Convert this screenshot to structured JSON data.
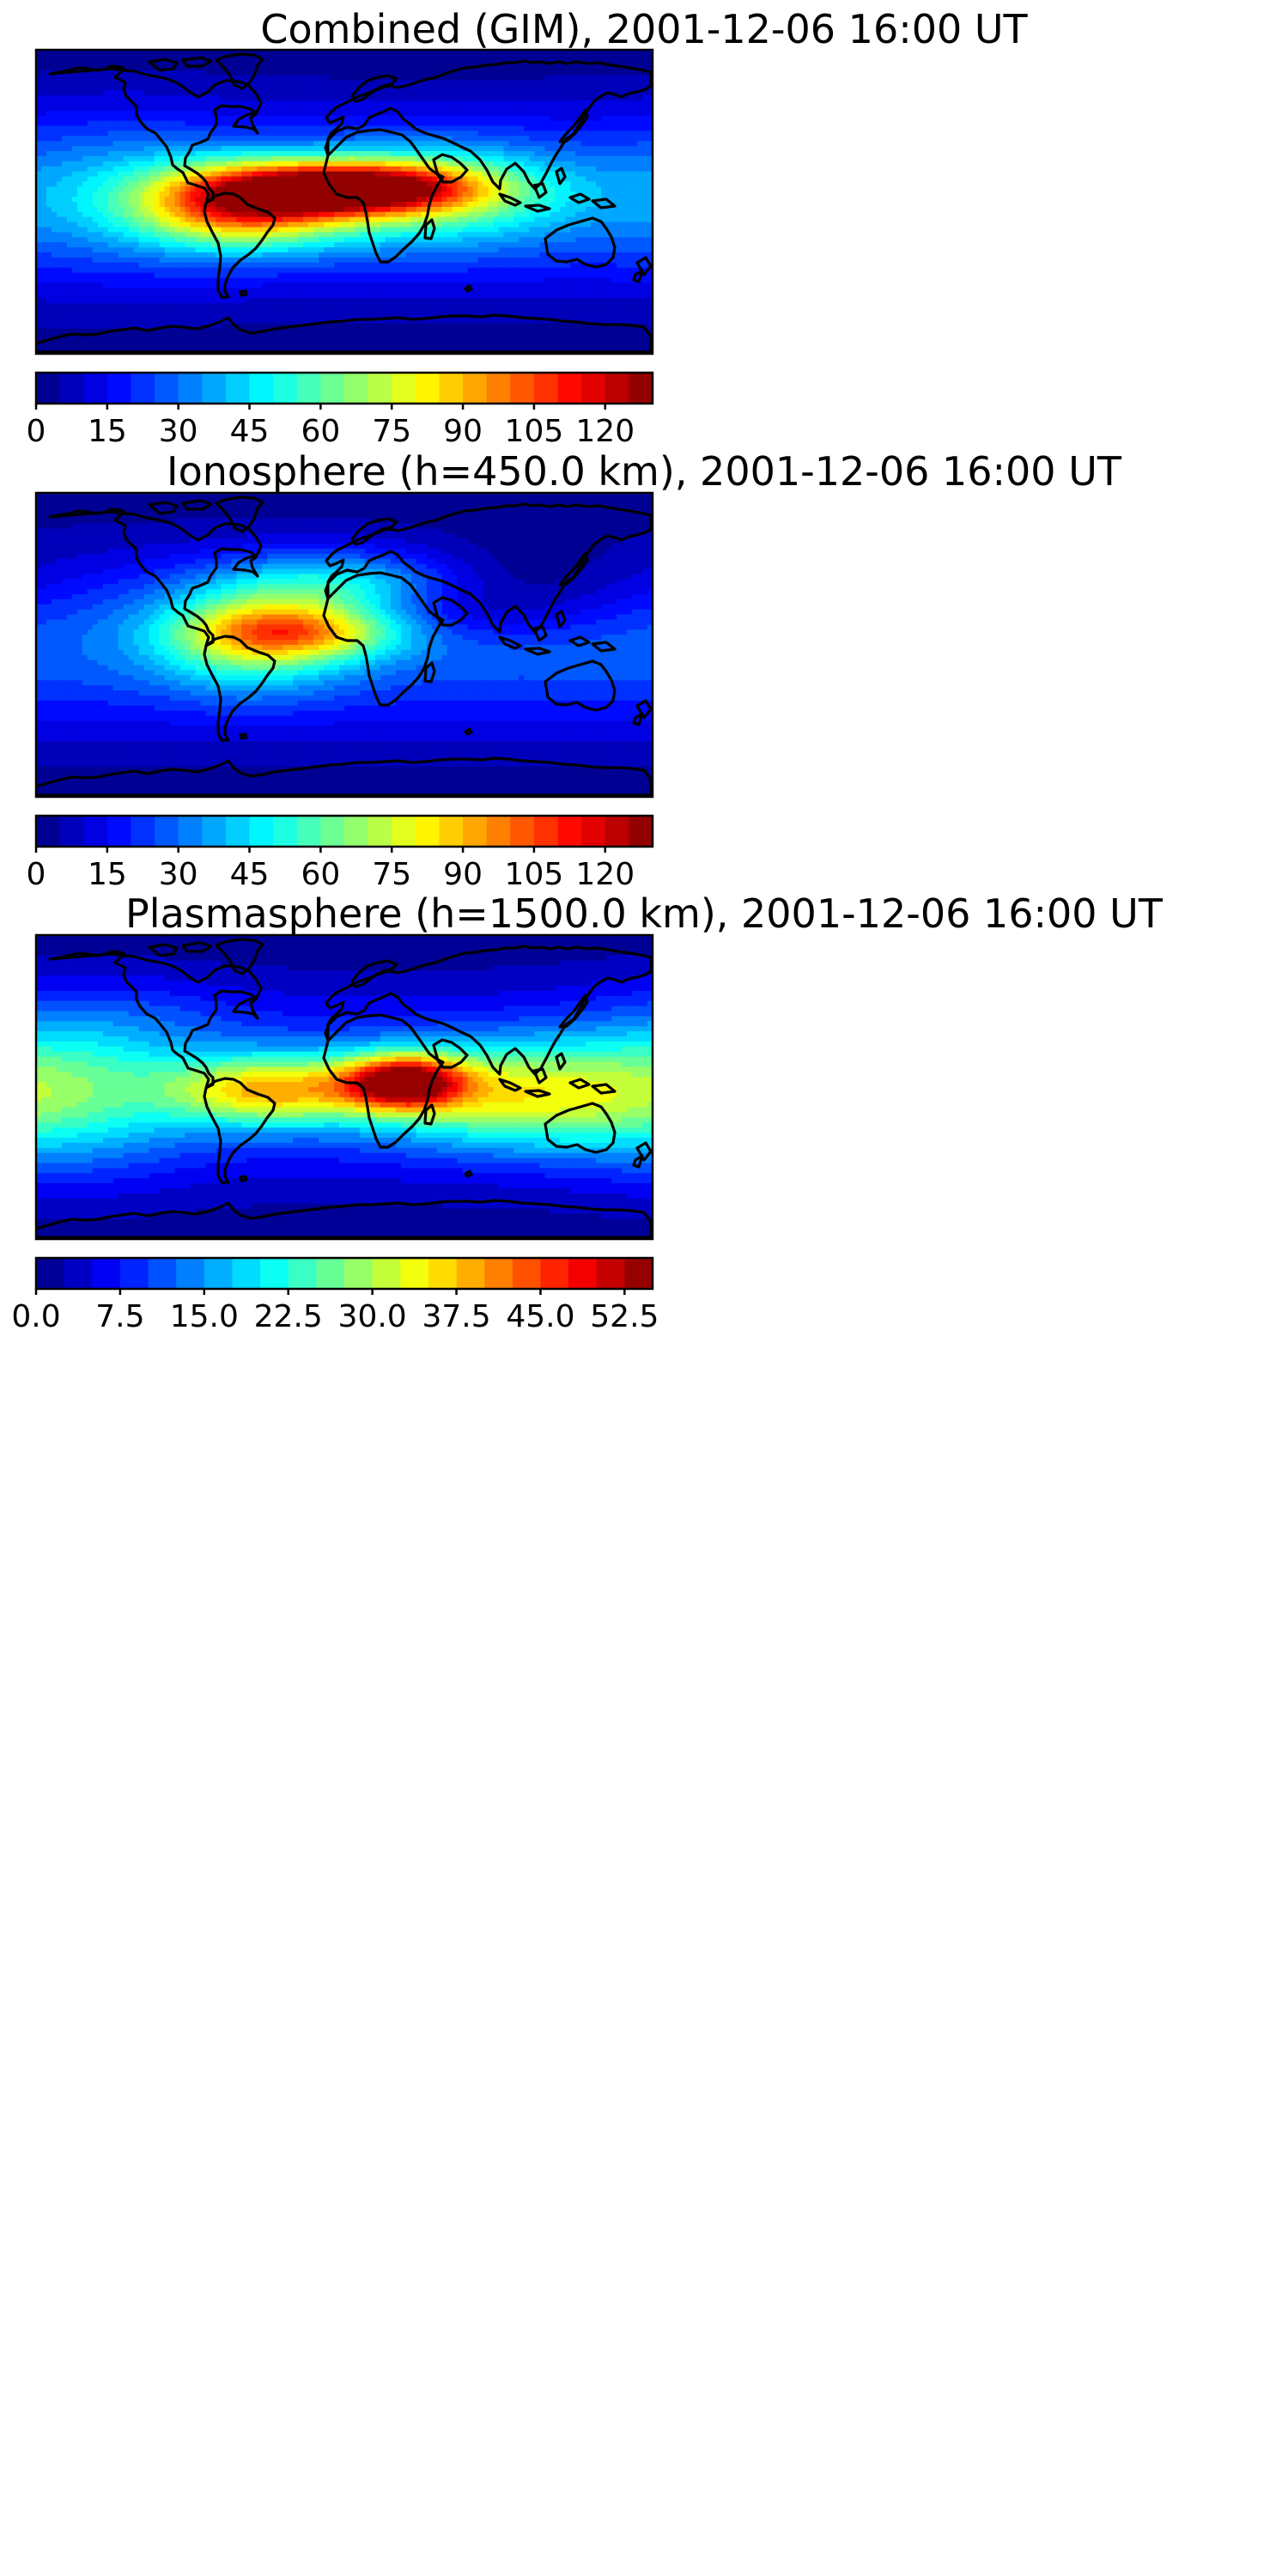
{
  "figure": {
    "panels": [
      {
        "title": "Combined (GIM), 2001-12-06 16:00 UT",
        "colorbar_ticks": [
          "0",
          "15",
          "30",
          "45",
          "60",
          "75",
          "90",
          "105",
          "120"
        ]
      },
      {
        "title": "Ionosphere  (h=450.0 km), 2001-12-06 16:00 UT",
        "colorbar_ticks": [
          "0",
          "15",
          "30",
          "45",
          "60",
          "75",
          "90",
          "105",
          "120"
        ]
      },
      {
        "title": "Plasmasphere (h=1500.0 km), 2001-12-06 16:00 UT",
        "colorbar_ticks": [
          "0.0",
          "7.5",
          "15.0",
          "22.5",
          "30.0",
          "37.5",
          "45.0",
          "52.5"
        ]
      }
    ]
  },
  "chart_data": [
    {
      "type": "heatmap",
      "title": "Combined (GIM), 2001-12-06 16:00 UT",
      "map": "world, equirectangular, longitude -180 to 180, latitude -90 to 90, with coastlines",
      "colormap": "jet, 26 discrete levels",
      "colorbar": {
        "min": 0,
        "max": 130,
        "level_step": 5,
        "ticks": [
          0,
          15,
          30,
          45,
          60,
          75,
          90,
          105,
          120
        ]
      },
      "xlim": [
        -180,
        180
      ],
      "ylim": [
        -90,
        90
      ],
      "features": [
        {
          "lon": 5,
          "lat": 8,
          "value": 120,
          "lon_width": 70,
          "lat_width": 15
        },
        {
          "lon": -60,
          "lat": -2,
          "value": 105,
          "lon_width": 60,
          "lat_width": 24
        },
        {
          "lon": 50,
          "lat": 5,
          "value": 65,
          "lon_width": 80,
          "lat_width": 30
        },
        {
          "lon": -130,
          "lat": 10,
          "value": 40,
          "lon_width": 70,
          "lat_width": 45
        },
        {
          "lon": 150,
          "lat": 0,
          "value": 28,
          "lon_width": 80,
          "lat_width": 40
        }
      ]
    },
    {
      "type": "heatmap",
      "title": "Ionosphere  (h=450.0 km), 2001-12-06 16:00 UT",
      "map": "world, equirectangular, longitude -180 to 180, latitude -90 to 90, with coastlines",
      "colormap": "jet, 26 discrete levels",
      "colorbar": {
        "min": 0,
        "max": 130,
        "level_step": 5,
        "ticks": [
          0,
          15,
          30,
          45,
          60,
          75,
          90,
          105,
          120
        ]
      },
      "xlim": [
        -180,
        180
      ],
      "ylim": [
        -90,
        90
      ],
      "features": [
        {
          "lon": -20,
          "lat": 8,
          "value": 78,
          "lon_width": 60,
          "lat_width": 16
        },
        {
          "lon": -55,
          "lat": 5,
          "value": 70,
          "lon_width": 55,
          "lat_width": 30
        },
        {
          "lon": 0,
          "lat": 35,
          "value": 55,
          "lon_width": 70,
          "lat_width": 20
        },
        {
          "lon": 45,
          "lat": 20,
          "value": 8,
          "lon_width": 90,
          "lat_width": 20
        },
        {
          "lon": 100,
          "lat": 40,
          "value": 5,
          "lon_width": 80,
          "lat_width": 25
        }
      ]
    },
    {
      "type": "heatmap",
      "title": "Plasmasphere (h=1500.0 km), 2001-12-06 16:00 UT",
      "map": "world, equirectangular, longitude -180 to 180, latitude -90 to 90, with coastlines",
      "colormap": "jet, 22 discrete levels",
      "colorbar": {
        "min": 0,
        "max": 55,
        "level_step": 2.5,
        "ticks": [
          0.0,
          7.5,
          15.0,
          22.5,
          30.0,
          37.5,
          45.0,
          52.5
        ]
      },
      "xlim": [
        -180,
        180
      ],
      "ylim": [
        -90,
        90
      ],
      "features": [
        {
          "lon": 35,
          "lat": 3,
          "value": 50,
          "lon_width": 35,
          "lat_width": 16
        },
        {
          "lon": -42,
          "lat": -2,
          "value": 38,
          "lon_width": 60,
          "lat_width": 20
        },
        {
          "lon": 100,
          "lat": -5,
          "value": 33,
          "lon_width": 80,
          "lat_width": 30
        },
        {
          "lon": -100,
          "lat": 45,
          "value": 8,
          "lon_width": 60,
          "lat_width": 20
        },
        {
          "lon": -160,
          "lat": 0,
          "value": 24,
          "lon_width": 70,
          "lat_width": 50
        }
      ]
    }
  ]
}
